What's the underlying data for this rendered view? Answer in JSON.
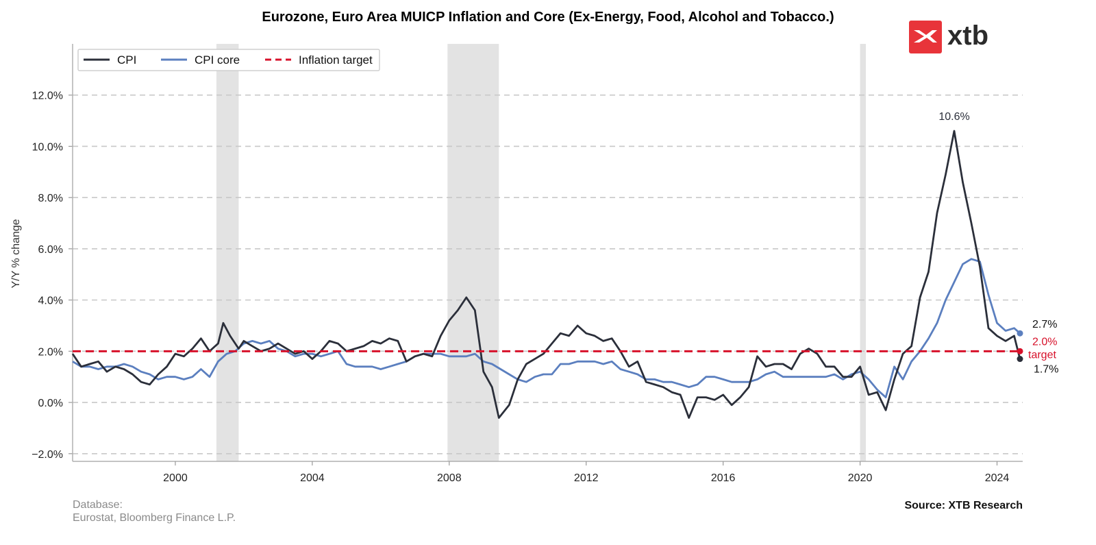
{
  "logo": {
    "brand_text": "xtb",
    "color": "#e8343a"
  },
  "footer": {
    "database_label": "Database:",
    "database_value": "Eurostat, Bloomberg Finance L.P.",
    "source": "Source: XTB Research"
  },
  "chart_data": {
    "type": "line",
    "title": "Eurozone, Euro Area MUICP Inflation and Core (Ex-Energy, Food, Alcohol and Tobacco.)",
    "ylabel": "Y/Y % change",
    "xlabel": "",
    "xlim": [
      1997.0,
      2024.75
    ],
    "ylim": [
      -2.3,
      14.0
    ],
    "x_ticks": [
      2000,
      2004,
      2008,
      2012,
      2016,
      2020,
      2024
    ],
    "x_tick_labels": [
      "2000",
      "2004",
      "2008",
      "2012",
      "2016",
      "2020",
      "2024"
    ],
    "y_ticks": [
      -2,
      0,
      2,
      4,
      6,
      8,
      10,
      12
    ],
    "y_tick_labels": [
      "−2.0%",
      "0.0%",
      "2.0%",
      "4.0%",
      "6.0%",
      "8.0%",
      "10.0%",
      "12.0%"
    ],
    "grid": "horizontal dashed",
    "legend_position": "top-left",
    "recessions": [
      [
        2001.2,
        2001.85
      ],
      [
        2007.95,
        2009.45
      ],
      [
        2020.0,
        2020.17
      ]
    ],
    "target": {
      "name": "Inflation target",
      "value": 2.0,
      "color": "#d7112a"
    },
    "series": [
      {
        "name": "CPI",
        "color": "#2b2f3a",
        "points": [
          [
            1997.0,
            1.9
          ],
          [
            1997.25,
            1.4
          ],
          [
            1997.5,
            1.5
          ],
          [
            1997.75,
            1.6
          ],
          [
            1998.0,
            1.2
          ],
          [
            1998.25,
            1.4
          ],
          [
            1998.5,
            1.3
          ],
          [
            1998.75,
            1.1
          ],
          [
            1999.0,
            0.8
          ],
          [
            1999.25,
            0.7
          ],
          [
            1999.5,
            1.1
          ],
          [
            1999.75,
            1.4
          ],
          [
            2000.0,
            1.9
          ],
          [
            2000.25,
            1.8
          ],
          [
            2000.5,
            2.1
          ],
          [
            2000.75,
            2.5
          ],
          [
            2001.0,
            2.0
          ],
          [
            2001.25,
            2.3
          ],
          [
            2001.4,
            3.1
          ],
          [
            2001.6,
            2.6
          ],
          [
            2001.85,
            2.1
          ],
          [
            2002.0,
            2.4
          ],
          [
            2002.25,
            2.2
          ],
          [
            2002.5,
            2.0
          ],
          [
            2002.75,
            2.1
          ],
          [
            2003.0,
            2.3
          ],
          [
            2003.25,
            2.1
          ],
          [
            2003.5,
            1.9
          ],
          [
            2003.75,
            2.0
          ],
          [
            2004.0,
            1.7
          ],
          [
            2004.25,
            2.0
          ],
          [
            2004.5,
            2.4
          ],
          [
            2004.75,
            2.3
          ],
          [
            2005.0,
            2.0
          ],
          [
            2005.25,
            2.1
          ],
          [
            2005.5,
            2.2
          ],
          [
            2005.75,
            2.4
          ],
          [
            2006.0,
            2.3
          ],
          [
            2006.25,
            2.5
          ],
          [
            2006.5,
            2.4
          ],
          [
            2006.75,
            1.6
          ],
          [
            2007.0,
            1.8
          ],
          [
            2007.25,
            1.9
          ],
          [
            2007.5,
            1.8
          ],
          [
            2007.75,
            2.6
          ],
          [
            2008.0,
            3.2
          ],
          [
            2008.25,
            3.6
          ],
          [
            2008.5,
            4.1
          ],
          [
            2008.75,
            3.6
          ],
          [
            2009.0,
            1.2
          ],
          [
            2009.25,
            0.6
          ],
          [
            2009.45,
            -0.6
          ],
          [
            2009.75,
            -0.1
          ],
          [
            2010.0,
            0.9
          ],
          [
            2010.25,
            1.5
          ],
          [
            2010.5,
            1.7
          ],
          [
            2010.75,
            1.9
          ],
          [
            2011.0,
            2.3
          ],
          [
            2011.25,
            2.7
          ],
          [
            2011.5,
            2.6
          ],
          [
            2011.75,
            3.0
          ],
          [
            2012.0,
            2.7
          ],
          [
            2012.25,
            2.6
          ],
          [
            2012.5,
            2.4
          ],
          [
            2012.75,
            2.5
          ],
          [
            2013.0,
            2.0
          ],
          [
            2013.25,
            1.4
          ],
          [
            2013.5,
            1.6
          ],
          [
            2013.75,
            0.8
          ],
          [
            2014.0,
            0.7
          ],
          [
            2014.25,
            0.6
          ],
          [
            2014.5,
            0.4
          ],
          [
            2014.75,
            0.3
          ],
          [
            2015.0,
            -0.6
          ],
          [
            2015.25,
            0.2
          ],
          [
            2015.5,
            0.2
          ],
          [
            2015.75,
            0.1
          ],
          [
            2016.0,
            0.3
          ],
          [
            2016.25,
            -0.1
          ],
          [
            2016.5,
            0.2
          ],
          [
            2016.75,
            0.6
          ],
          [
            2017.0,
            1.8
          ],
          [
            2017.25,
            1.4
          ],
          [
            2017.5,
            1.5
          ],
          [
            2017.75,
            1.5
          ],
          [
            2018.0,
            1.3
          ],
          [
            2018.25,
            1.9
          ],
          [
            2018.5,
            2.1
          ],
          [
            2018.75,
            1.9
          ],
          [
            2019.0,
            1.4
          ],
          [
            2019.25,
            1.4
          ],
          [
            2019.5,
            1.0
          ],
          [
            2019.75,
            1.0
          ],
          [
            2020.0,
            1.4
          ],
          [
            2020.25,
            0.3
          ],
          [
            2020.5,
            0.4
          ],
          [
            2020.75,
            -0.3
          ],
          [
            2021.0,
            0.9
          ],
          [
            2021.25,
            1.9
          ],
          [
            2021.5,
            2.2
          ],
          [
            2021.75,
            4.1
          ],
          [
            2022.0,
            5.1
          ],
          [
            2022.25,
            7.4
          ],
          [
            2022.5,
            8.9
          ],
          [
            2022.75,
            10.6
          ],
          [
            2023.0,
            8.6
          ],
          [
            2023.25,
            7.0
          ],
          [
            2023.5,
            5.3
          ],
          [
            2023.75,
            2.9
          ],
          [
            2024.0,
            2.6
          ],
          [
            2024.25,
            2.4
          ],
          [
            2024.5,
            2.6
          ],
          [
            2024.67,
            1.7
          ]
        ]
      },
      {
        "name": "CPI core",
        "color": "#5b7fbf",
        "points": [
          [
            1997.0,
            1.6
          ],
          [
            1997.25,
            1.4
          ],
          [
            1997.5,
            1.4
          ],
          [
            1997.75,
            1.3
          ],
          [
            1998.0,
            1.4
          ],
          [
            1998.25,
            1.4
          ],
          [
            1998.5,
            1.5
          ],
          [
            1998.75,
            1.4
          ],
          [
            1999.0,
            1.2
          ],
          [
            1999.25,
            1.1
          ],
          [
            1999.5,
            0.9
          ],
          [
            1999.75,
            1.0
          ],
          [
            2000.0,
            1.0
          ],
          [
            2000.25,
            0.9
          ],
          [
            2000.5,
            1.0
          ],
          [
            2000.75,
            1.3
          ],
          [
            2001.0,
            1.0
          ],
          [
            2001.25,
            1.6
          ],
          [
            2001.5,
            1.9
          ],
          [
            2001.75,
            2.0
          ],
          [
            2002.0,
            2.3
          ],
          [
            2002.25,
            2.4
          ],
          [
            2002.5,
            2.3
          ],
          [
            2002.75,
            2.4
          ],
          [
            2003.0,
            2.1
          ],
          [
            2003.25,
            2.0
          ],
          [
            2003.5,
            1.8
          ],
          [
            2003.75,
            1.9
          ],
          [
            2004.0,
            1.9
          ],
          [
            2004.25,
            1.8
          ],
          [
            2004.5,
            1.9
          ],
          [
            2004.75,
            2.0
          ],
          [
            2005.0,
            1.5
          ],
          [
            2005.25,
            1.4
          ],
          [
            2005.5,
            1.4
          ],
          [
            2005.75,
            1.4
          ],
          [
            2006.0,
            1.3
          ],
          [
            2006.25,
            1.4
          ],
          [
            2006.5,
            1.5
          ],
          [
            2006.75,
            1.6
          ],
          [
            2007.0,
            1.8
          ],
          [
            2007.25,
            1.9
          ],
          [
            2007.5,
            1.9
          ],
          [
            2007.75,
            1.9
          ],
          [
            2008.0,
            1.8
          ],
          [
            2008.25,
            1.8
          ],
          [
            2008.5,
            1.8
          ],
          [
            2008.75,
            1.9
          ],
          [
            2009.0,
            1.6
          ],
          [
            2009.25,
            1.5
          ],
          [
            2009.5,
            1.3
          ],
          [
            2009.75,
            1.1
          ],
          [
            2010.0,
            0.9
          ],
          [
            2010.25,
            0.8
          ],
          [
            2010.5,
            1.0
          ],
          [
            2010.75,
            1.1
          ],
          [
            2011.0,
            1.1
          ],
          [
            2011.25,
            1.5
          ],
          [
            2011.5,
            1.5
          ],
          [
            2011.75,
            1.6
          ],
          [
            2012.0,
            1.6
          ],
          [
            2012.25,
            1.6
          ],
          [
            2012.5,
            1.5
          ],
          [
            2012.75,
            1.6
          ],
          [
            2013.0,
            1.3
          ],
          [
            2013.25,
            1.2
          ],
          [
            2013.5,
            1.1
          ],
          [
            2013.75,
            0.9
          ],
          [
            2014.0,
            0.9
          ],
          [
            2014.25,
            0.8
          ],
          [
            2014.5,
            0.8
          ],
          [
            2014.75,
            0.7
          ],
          [
            2015.0,
            0.6
          ],
          [
            2015.25,
            0.7
          ],
          [
            2015.5,
            1.0
          ],
          [
            2015.75,
            1.0
          ],
          [
            2016.0,
            0.9
          ],
          [
            2016.25,
            0.8
          ],
          [
            2016.5,
            0.8
          ],
          [
            2016.75,
            0.8
          ],
          [
            2017.0,
            0.9
          ],
          [
            2017.25,
            1.1
          ],
          [
            2017.5,
            1.2
          ],
          [
            2017.75,
            1.0
          ],
          [
            2018.0,
            1.0
          ],
          [
            2018.25,
            1.0
          ],
          [
            2018.5,
            1.0
          ],
          [
            2018.75,
            1.0
          ],
          [
            2019.0,
            1.0
          ],
          [
            2019.25,
            1.1
          ],
          [
            2019.5,
            0.9
          ],
          [
            2019.75,
            1.1
          ],
          [
            2020.0,
            1.2
          ],
          [
            2020.25,
            0.9
          ],
          [
            2020.5,
            0.5
          ],
          [
            2020.75,
            0.2
          ],
          [
            2021.0,
            1.4
          ],
          [
            2021.25,
            0.9
          ],
          [
            2021.5,
            1.6
          ],
          [
            2021.75,
            2.0
          ],
          [
            2022.0,
            2.5
          ],
          [
            2022.25,
            3.1
          ],
          [
            2022.5,
            4.0
          ],
          [
            2022.75,
            4.7
          ],
          [
            2023.0,
            5.4
          ],
          [
            2023.25,
            5.6
          ],
          [
            2023.5,
            5.5
          ],
          [
            2023.75,
            4.2
          ],
          [
            2024.0,
            3.1
          ],
          [
            2024.25,
            2.8
          ],
          [
            2024.5,
            2.9
          ],
          [
            2024.67,
            2.7
          ]
        ]
      }
    ],
    "annotations": [
      {
        "text": "10.6%",
        "x": 2022.75,
        "y": 10.6,
        "color": "#2b2f3a"
      },
      {
        "text": "2.7%",
        "series": "CPI core",
        "color": "#111111"
      },
      {
        "text": "2.0%",
        "series": "Inflation target",
        "color": "#d7112a"
      },
      {
        "text": "target",
        "series": "Inflation target",
        "color": "#d7112a"
      },
      {
        "text": "1.7%",
        "series": "CPI",
        "color": "#111111"
      }
    ]
  }
}
